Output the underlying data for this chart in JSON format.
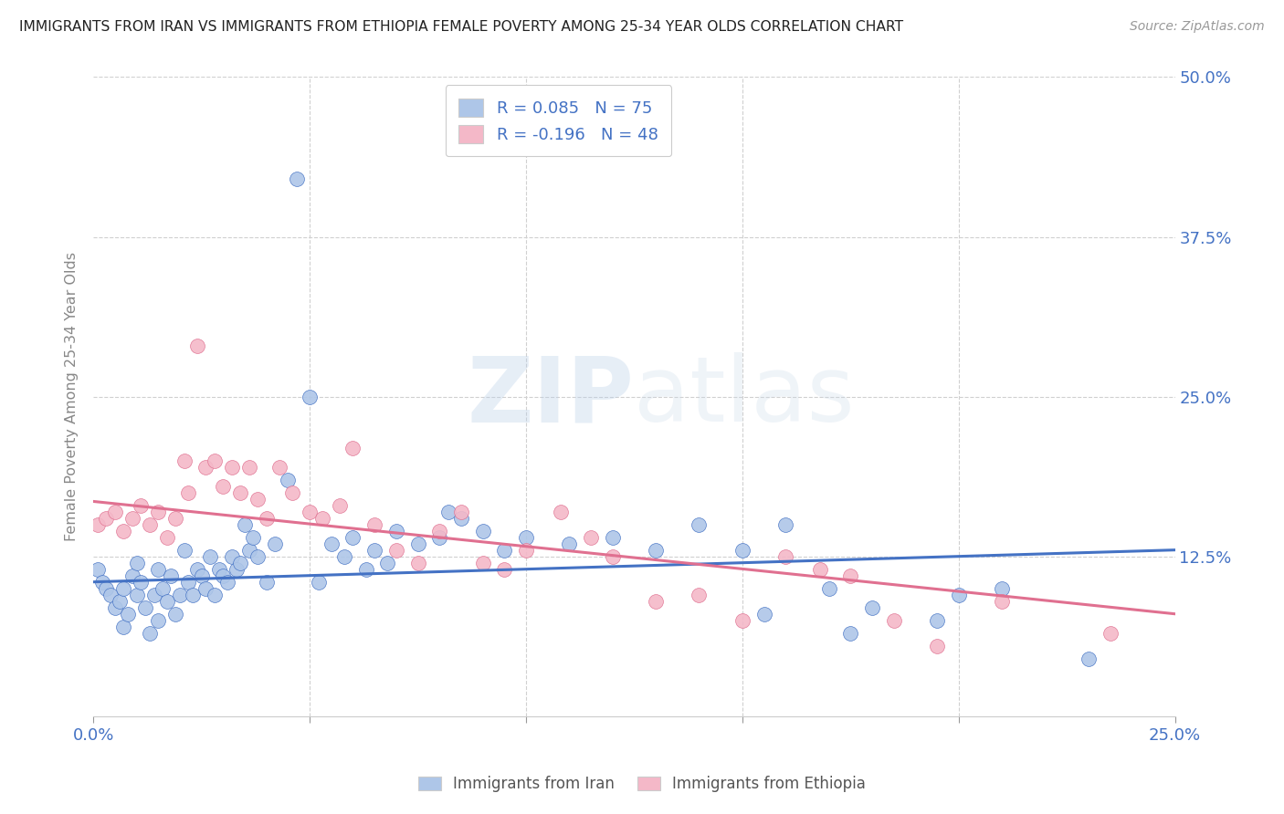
{
  "title": "IMMIGRANTS FROM IRAN VS IMMIGRANTS FROM ETHIOPIA FEMALE POVERTY AMONG 25-34 YEAR OLDS CORRELATION CHART",
  "source": "Source: ZipAtlas.com",
  "ylabel": "Female Poverty Among 25-34 Year Olds",
  "xlim": [
    0.0,
    0.25
  ],
  "ylim": [
    0.0,
    0.5
  ],
  "yticks": [
    0.0,
    0.125,
    0.25,
    0.375,
    0.5
  ],
  "ytick_labels": [
    "",
    "12.5%",
    "25.0%",
    "37.5%",
    "50.0%"
  ],
  "xticks": [
    0.0,
    0.05,
    0.1,
    0.15,
    0.2,
    0.25
  ],
  "xtick_labels": [
    "0.0%",
    "",
    "",
    "",
    "",
    "25.0%"
  ],
  "series_iran": {
    "label": "Immigrants from Iran",
    "color": "#aec6e8",
    "line_color": "#4472c4",
    "R": 0.085,
    "N": 75,
    "x": [
      0.001,
      0.002,
      0.003,
      0.004,
      0.005,
      0.006,
      0.007,
      0.007,
      0.008,
      0.009,
      0.01,
      0.01,
      0.011,
      0.012,
      0.013,
      0.014,
      0.015,
      0.015,
      0.016,
      0.017,
      0.018,
      0.019,
      0.02,
      0.021,
      0.022,
      0.023,
      0.024,
      0.025,
      0.026,
      0.027,
      0.028,
      0.029,
      0.03,
      0.031,
      0.032,
      0.033,
      0.034,
      0.035,
      0.036,
      0.037,
      0.038,
      0.04,
      0.042,
      0.045,
      0.047,
      0.05,
      0.052,
      0.055,
      0.058,
      0.06,
      0.063,
      0.065,
      0.068,
      0.07,
      0.075,
      0.08,
      0.082,
      0.085,
      0.09,
      0.095,
      0.1,
      0.11,
      0.12,
      0.13,
      0.14,
      0.15,
      0.155,
      0.16,
      0.17,
      0.175,
      0.18,
      0.195,
      0.2,
      0.21,
      0.23
    ],
    "y": [
      0.115,
      0.105,
      0.1,
      0.095,
      0.085,
      0.09,
      0.07,
      0.1,
      0.08,
      0.11,
      0.095,
      0.12,
      0.105,
      0.085,
      0.065,
      0.095,
      0.075,
      0.115,
      0.1,
      0.09,
      0.11,
      0.08,
      0.095,
      0.13,
      0.105,
      0.095,
      0.115,
      0.11,
      0.1,
      0.125,
      0.095,
      0.115,
      0.11,
      0.105,
      0.125,
      0.115,
      0.12,
      0.15,
      0.13,
      0.14,
      0.125,
      0.105,
      0.135,
      0.185,
      0.42,
      0.25,
      0.105,
      0.135,
      0.125,
      0.14,
      0.115,
      0.13,
      0.12,
      0.145,
      0.135,
      0.14,
      0.16,
      0.155,
      0.145,
      0.13,
      0.14,
      0.135,
      0.14,
      0.13,
      0.15,
      0.13,
      0.08,
      0.15,
      0.1,
      0.065,
      0.085,
      0.075,
      0.095,
      0.1,
      0.045
    ],
    "trend_x": [
      0.0,
      0.25
    ],
    "trend_y": [
      0.105,
      0.13
    ]
  },
  "series_ethiopia": {
    "label": "Immigrants from Ethiopia",
    "color": "#f4b8c8",
    "line_color": "#e07090",
    "R": -0.196,
    "N": 48,
    "x": [
      0.001,
      0.003,
      0.005,
      0.007,
      0.009,
      0.011,
      0.013,
      0.015,
      0.017,
      0.019,
      0.021,
      0.022,
      0.024,
      0.026,
      0.028,
      0.03,
      0.032,
      0.034,
      0.036,
      0.038,
      0.04,
      0.043,
      0.046,
      0.05,
      0.053,
      0.057,
      0.06,
      0.065,
      0.07,
      0.075,
      0.08,
      0.085,
      0.09,
      0.095,
      0.1,
      0.108,
      0.115,
      0.12,
      0.13,
      0.14,
      0.15,
      0.16,
      0.168,
      0.175,
      0.185,
      0.195,
      0.21,
      0.235
    ],
    "y": [
      0.15,
      0.155,
      0.16,
      0.145,
      0.155,
      0.165,
      0.15,
      0.16,
      0.14,
      0.155,
      0.2,
      0.175,
      0.29,
      0.195,
      0.2,
      0.18,
      0.195,
      0.175,
      0.195,
      0.17,
      0.155,
      0.195,
      0.175,
      0.16,
      0.155,
      0.165,
      0.21,
      0.15,
      0.13,
      0.12,
      0.145,
      0.16,
      0.12,
      0.115,
      0.13,
      0.16,
      0.14,
      0.125,
      0.09,
      0.095,
      0.075,
      0.125,
      0.115,
      0.11,
      0.075,
      0.055,
      0.09,
      0.065
    ],
    "trend_x": [
      0.0,
      0.25
    ],
    "trend_y": [
      0.168,
      0.08
    ]
  },
  "watermark_zip": "ZIP",
  "watermark_atlas": "atlas",
  "background_color": "#ffffff",
  "grid_color": "#d0d0d0",
  "title_color": "#222222",
  "axis_label_color": "#4472c4",
  "legend_R_color": "#4472c4"
}
